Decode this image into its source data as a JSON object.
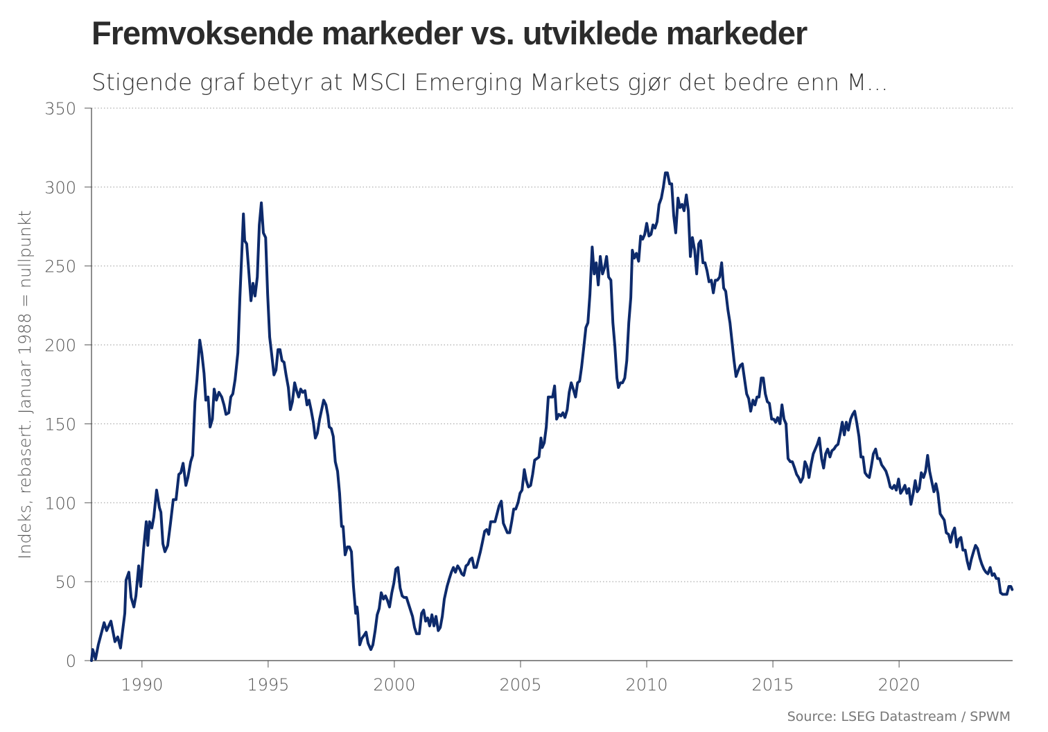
{
  "chart_data": {
    "type": "line",
    "title": "Fremvoksende markeder vs. utviklede markeder",
    "subtitle": "Stigende graf betyr at MSCI Emerging Markets gjør det bedre enn M...",
    "y_label": "Indeks, rebasert. Januar 1988 = nullpunkt",
    "source": "Source: LSEG Datastream / SPWM",
    "color": "#0d2a6b",
    "grid": true,
    "xlim": [
      1988,
      2024.5
    ],
    "xticks": [
      1990,
      1995,
      2000,
      2005,
      2010,
      2015,
      2020
    ],
    "ylim": [
      0,
      350
    ],
    "yticks": [
      0,
      50,
      100,
      150,
      200,
      250,
      300,
      350
    ],
    "x": [
      1988.0,
      1988.05,
      1988.16,
      1988.27,
      1988.5,
      1988.6,
      1988.77,
      1988.93,
      1989.04,
      1989.15,
      1989.32,
      1989.37,
      1989.48,
      1989.57,
      1989.68,
      1989.76,
      1989.87,
      1989.95,
      1990.06,
      1990.17,
      1990.23,
      1990.3,
      1990.39,
      1990.47,
      1990.58,
      1990.69,
      1990.75,
      1990.83,
      1990.91,
      1991.02,
      1991.13,
      1991.24,
      1991.35,
      1991.46,
      1991.54,
      1991.63,
      1991.74,
      1991.82,
      1991.93,
      1992.01,
      1992.1,
      1992.18,
      1992.29,
      1992.37,
      1992.46,
      1992.53,
      1992.62,
      1992.7,
      1992.79,
      1992.86,
      1992.95,
      1993.05,
      1993.16,
      1993.25,
      1993.33,
      1993.44,
      1993.52,
      1993.6,
      1993.69,
      1993.8,
      1993.88,
      1993.96,
      1994.02,
      1994.07,
      1994.15,
      1994.24,
      1994.32,
      1994.4,
      1994.48,
      1994.57,
      1994.65,
      1994.73,
      1994.81,
      1994.9,
      1994.98,
      1995.06,
      1995.14,
      1995.23,
      1995.31,
      1995.39,
      1995.47,
      1995.55,
      1995.63,
      1995.71,
      1995.8,
      1995.88,
      1995.96,
      1996.05,
      1996.13,
      1996.21,
      1996.29,
      1996.37,
      1996.46,
      1996.54,
      1996.62,
      1996.7,
      1996.79,
      1996.87,
      1996.95,
      1997.04,
      1997.12,
      1997.2,
      1997.29,
      1997.37,
      1997.42,
      1997.5,
      1997.58,
      1997.66,
      1997.75,
      1997.83,
      1997.91,
      1997.97,
      1998.05,
      1998.14,
      1998.22,
      1998.3,
      1998.38,
      1998.47,
      1998.52,
      1998.55,
      1998.63,
      1998.71,
      1998.8,
      1998.88,
      1998.96,
      1999.07,
      1999.15,
      1999.24,
      1999.32,
      1999.4,
      1999.48,
      1999.57,
      1999.65,
      1999.73,
      1999.81,
      1999.9,
      1999.98,
      2000.06,
      2000.14,
      2000.23,
      2000.31,
      2000.39,
      2000.48,
      2000.56,
      2000.64,
      2000.72,
      2000.8,
      2000.88,
      2000.99,
      2001.08,
      2001.16,
      2001.24,
      2001.32,
      2001.4,
      2001.49,
      2001.57,
      2001.65,
      2001.74,
      2001.82,
      2001.9,
      2001.98,
      2002.09,
      2002.18,
      2002.26,
      2002.34,
      2002.42,
      2002.51,
      2002.59,
      2002.67,
      2002.75,
      2002.84,
      2002.92,
      2003.0,
      2003.08,
      2003.16,
      2003.25,
      2003.33,
      2003.41,
      2003.49,
      2003.58,
      2003.66,
      2003.74,
      2003.82,
      2003.91,
      2003.99,
      2004.07,
      2004.15,
      2004.24,
      2004.32,
      2004.4,
      2004.48,
      2004.57,
      2004.65,
      2004.73,
      2004.81,
      2004.9,
      2004.98,
      2005.06,
      2005.15,
      2005.23,
      2005.31,
      2005.4,
      2005.48,
      2005.56,
      2005.65,
      2005.73,
      2005.81,
      2005.86,
      2005.94,
      2006.02,
      2006.1,
      2006.19,
      2006.27,
      2006.35,
      2006.43,
      2006.52,
      2006.6,
      2006.68,
      2006.76,
      2006.85,
      2006.93,
      2007.01,
      2007.09,
      2007.18,
      2007.26,
      2007.34,
      2007.42,
      2007.51,
      2007.59,
      2007.67,
      2007.75,
      2007.84,
      2007.92,
      2008.0,
      2008.08,
      2008.16,
      2008.25,
      2008.33,
      2008.41,
      2008.49,
      2008.58,
      2008.66,
      2008.74,
      2008.82,
      2008.88,
      2008.96,
      2009.04,
      2009.13,
      2009.21,
      2009.29,
      2009.37,
      2009.43,
      2009.51,
      2009.59,
      2009.68,
      2009.76,
      2009.84,
      2009.92,
      2010.0,
      2010.09,
      2010.17,
      2010.25,
      2010.33,
      2010.41,
      2010.49,
      2010.58,
      2010.66,
      2010.74,
      2010.82,
      2010.91,
      2010.99,
      2011.07,
      2011.15,
      2011.24,
      2011.32,
      2011.4,
      2011.48,
      2011.57,
      2011.65,
      2011.73,
      2011.81,
      2011.9,
      2011.98,
      2012.06,
      2012.14,
      2012.23,
      2012.31,
      2012.39,
      2012.47,
      2012.56,
      2012.64,
      2012.72,
      2012.8,
      2012.89,
      2012.97,
      2013.05,
      2013.13,
      2013.22,
      2013.3,
      2013.38,
      2013.46,
      2013.54,
      2013.63,
      2013.71,
      2013.79,
      2013.87,
      2013.96,
      2014.04,
      2014.12,
      2014.21,
      2014.29,
      2014.37,
      2014.45,
      2014.54,
      2014.62,
      2014.7,
      2014.78,
      2014.86,
      2014.95,
      2015.03,
      2015.11,
      2015.19,
      2015.28,
      2015.36,
      2015.44,
      2015.52,
      2015.6,
      2015.69,
      2015.77,
      2015.86,
      2015.94,
      2016.02,
      2016.1,
      2016.19,
      2016.27,
      2016.35,
      2016.43,
      2016.51,
      2016.6,
      2016.68,
      2016.76,
      2016.84,
      2016.93,
      2017.01,
      2017.09,
      2017.17,
      2017.26,
      2017.34,
      2017.42,
      2017.5,
      2017.58,
      2017.67,
      2017.75,
      2017.83,
      2017.91,
      2017.99,
      2018.08,
      2018.16,
      2018.24,
      2018.32,
      2018.41,
      2018.49,
      2018.57,
      2018.65,
      2018.74,
      2018.82,
      2018.9,
      2018.98,
      2019.07,
      2019.15,
      2019.23,
      2019.31,
      2019.4,
      2019.48,
      2019.56,
      2019.65,
      2019.73,
      2019.81,
      2019.89,
      2019.98,
      2020.06,
      2020.14,
      2020.23,
      2020.31,
      2020.39,
      2020.47,
      2020.56,
      2020.64,
      2020.72,
      2020.8,
      2020.88,
      2020.97,
      2021.05,
      2021.13,
      2021.21,
      2021.3,
      2021.38,
      2021.46,
      2021.54,
      2021.63,
      2021.71,
      2021.79,
      2021.87,
      2021.96,
      2022.04,
      2022.12,
      2022.2,
      2022.29,
      2022.37,
      2022.45,
      2022.53,
      2022.62,
      2022.7,
      2022.78,
      2022.86,
      2022.95,
      2023.03,
      2023.11,
      2023.2,
      2023.28,
      2023.36,
      2023.44,
      2023.52,
      2023.61,
      2023.69,
      2023.77,
      2023.85,
      2023.94,
      2024.02,
      2024.1,
      2024.19,
      2024.27,
      2024.35,
      2024.43,
      2024.48
    ],
    "values": [
      0,
      7,
      1,
      10,
      24,
      19,
      25,
      12,
      15,
      8,
      30,
      51,
      56,
      40,
      34,
      41,
      60,
      47,
      70,
      88,
      73,
      88,
      84,
      91,
      108,
      97,
      94,
      74,
      69,
      73,
      87,
      102,
      102,
      118,
      119,
      125,
      111,
      116,
      126,
      130,
      164,
      178,
      203,
      195,
      182,
      165,
      167,
      148,
      153,
      172,
      165,
      170,
      167,
      162,
      156,
      157,
      167,
      169,
      178,
      195,
      230,
      260,
      283,
      266,
      264,
      245,
      228,
      239,
      231,
      243,
      276,
      290,
      271,
      268,
      232,
      205,
      194,
      181,
      184,
      197,
      197,
      190,
      189,
      181,
      173,
      159,
      164,
      176,
      171,
      167,
      172,
      170,
      171,
      162,
      165,
      159,
      151,
      141,
      144,
      153,
      159,
      165,
      162,
      155,
      148,
      147,
      142,
      126,
      120,
      106,
      85,
      85,
      67,
      72,
      72,
      69,
      47,
      30,
      34,
      30,
      10,
      14,
      16,
      18,
      11,
      7,
      10,
      19,
      29,
      33,
      43,
      39,
      41,
      38,
      34,
      43,
      49,
      58,
      59,
      46,
      41,
      40,
      40,
      36,
      32,
      28,
      21,
      17,
      17,
      30,
      32,
      25,
      27,
      22,
      29,
      22,
      28,
      19,
      21,
      28,
      39,
      47,
      52,
      56,
      59,
      56,
      60,
      58,
      55,
      54,
      60,
      61,
      64,
      65,
      59,
      59,
      64,
      69,
      75,
      82,
      83,
      80,
      88,
      88,
      88,
      93,
      98,
      101,
      87,
      84,
      81,
      81,
      88,
      96,
      96,
      100,
      106,
      108,
      121,
      114,
      110,
      111,
      118,
      127,
      128,
      129,
      141,
      135,
      138,
      148,
      167,
      167,
      167,
      174,
      153,
      156,
      155,
      157,
      154,
      159,
      170,
      176,
      172,
      167,
      176,
      177,
      186,
      199,
      211,
      214,
      232,
      262,
      245,
      252,
      238,
      256,
      245,
      249,
      256,
      243,
      241,
      214,
      199,
      179,
      173,
      176,
      176,
      179,
      190,
      214,
      230,
      260,
      255,
      258,
      253,
      269,
      267,
      270,
      277,
      269,
      270,
      276,
      274,
      278,
      289,
      293,
      300,
      309,
      309,
      302,
      302,
      282,
      271,
      293,
      287,
      289,
      285,
      295,
      285,
      256,
      268,
      260,
      245,
      264,
      266,
      252,
      252,
      247,
      240,
      241,
      233,
      241,
      241,
      243,
      252,
      236,
      234,
      222,
      214,
      202,
      190,
      180,
      184,
      187,
      188,
      179,
      169,
      166,
      158,
      165,
      162,
      167,
      167,
      179,
      179,
      169,
      164,
      163,
      153,
      153,
      151,
      154,
      150,
      162,
      153,
      150,
      128,
      126,
      126,
      122,
      118,
      116,
      113,
      116,
      126,
      123,
      116,
      124,
      131,
      134,
      137,
      141,
      128,
      122,
      131,
      134,
      129,
      133,
      134,
      136,
      137,
      144,
      151,
      143,
      151,
      146,
      153,
      156,
      158,
      151,
      142,
      129,
      129,
      119,
      117,
      116,
      123,
      131,
      134,
      128,
      128,
      124,
      122,
      120,
      116,
      110,
      109,
      111,
      108,
      115,
      106,
      108,
      111,
      106,
      109,
      99,
      106,
      114,
      107,
      109,
      119,
      116,
      120,
      130,
      120,
      113,
      107,
      112,
      106,
      93,
      91,
      89,
      81,
      80,
      75,
      81,
      84,
      72,
      77,
      78,
      70,
      70,
      63,
      58,
      64,
      69,
      73,
      71,
      65,
      61,
      58,
      56,
      55,
      59,
      54,
      55,
      52,
      52,
      43,
      42,
      42,
      42,
      47,
      47,
      45
    ]
  }
}
